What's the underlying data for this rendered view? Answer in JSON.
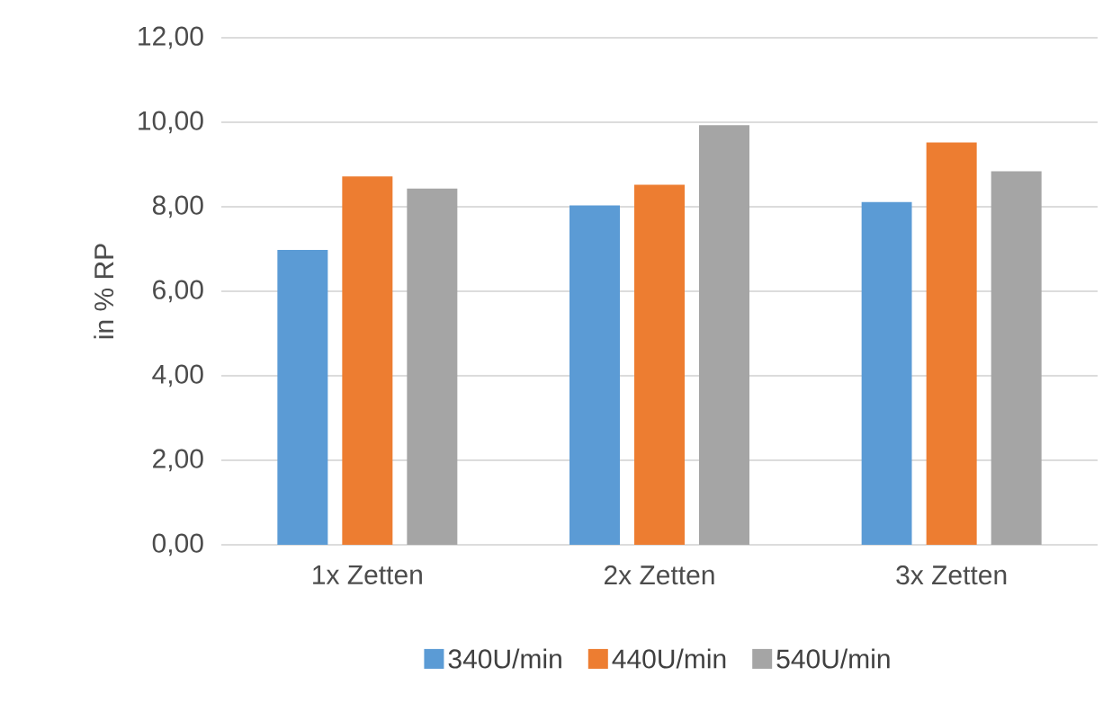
{
  "chart_data": {
    "type": "bar",
    "ylabel": "in % RP",
    "categories": [
      "1x Zetten",
      "2x Zetten",
      "3x Zetten"
    ],
    "series": [
      {
        "name": "340U/min",
        "color": "#5b9bd5",
        "values": [
          6.98,
          8.03,
          8.11
        ]
      },
      {
        "name": "440U/min",
        "color": "#ed7d31",
        "values": [
          8.72,
          8.52,
          9.52
        ]
      },
      {
        "name": "540U/min",
        "color": "#a5a5a5",
        "values": [
          8.43,
          9.93,
          8.84
        ]
      }
    ],
    "ylim": [
      0,
      12
    ],
    "yticks": [
      {
        "value": 0,
        "label": "0,00"
      },
      {
        "value": 2,
        "label": "2,00"
      },
      {
        "value": 4,
        "label": "4,00"
      },
      {
        "value": 6,
        "label": "6,00"
      },
      {
        "value": 8,
        "label": "8,00"
      },
      {
        "value": 10,
        "label": "10,00"
      },
      {
        "value": 12,
        "label": "12,00"
      }
    ],
    "grid": "y",
    "legend": "bottom"
  }
}
